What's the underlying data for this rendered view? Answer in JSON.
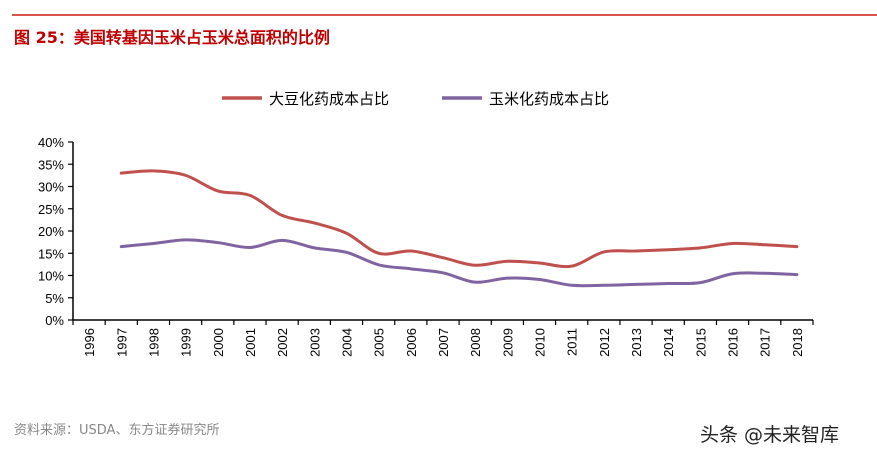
{
  "title": "图 25：美国转基因玉米占玉米总面积的比例",
  "source": "资料来源：USDA、东方证券研究所",
  "watermark": "头条 @未来智库",
  "chart_data": {
    "type": "line",
    "title": "",
    "xlabel": "",
    "ylabel": "",
    "categories": [
      "1996",
      "1997",
      "1998",
      "1999",
      "2000",
      "2001",
      "2002",
      "2003",
      "2004",
      "2005",
      "2006",
      "2007",
      "2008",
      "2009",
      "2010",
      "2011",
      "2012",
      "2013",
      "2014",
      "2015",
      "2016",
      "2017",
      "2018"
    ],
    "ylim": [
      0,
      40
    ],
    "yticks": [
      "0%",
      "5%",
      "10%",
      "15%",
      "20%",
      "25%",
      "30%",
      "35%",
      "40%"
    ],
    "grid": false,
    "legend": "top",
    "series": [
      {
        "name": "大豆化药成本占比",
        "color": "#c0504d",
        "values": [
          null,
          33.0,
          33.5,
          32.5,
          29.0,
          28.0,
          23.5,
          21.8,
          19.5,
          15.0,
          15.5,
          14.0,
          12.3,
          13.2,
          12.8,
          12.1,
          15.3,
          15.5,
          15.8,
          16.2,
          17.2,
          16.9,
          16.5
        ]
      },
      {
        "name": "玉米化药成本占比",
        "color": "#8064a2",
        "values": [
          null,
          16.5,
          17.2,
          18.0,
          17.4,
          16.3,
          17.9,
          16.2,
          15.2,
          12.4,
          11.5,
          10.6,
          8.5,
          9.4,
          9.1,
          7.8,
          7.8,
          8.0,
          8.2,
          8.4,
          10.4,
          10.5,
          10.2
        ]
      }
    ]
  }
}
